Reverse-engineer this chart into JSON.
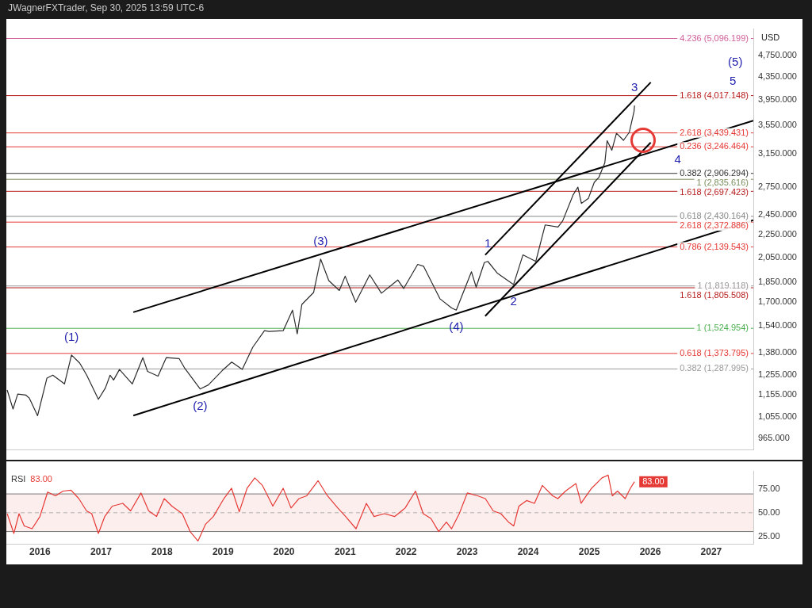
{
  "chart_data": [
    {
      "type": "line",
      "title": "JWagnerFXTrader, Sep 30, 2025 13:59 UTC-6",
      "ylabel": "USD",
      "log": true,
      "grid": false,
      "legend": false,
      "marker": "none",
      "tick_labels": "y",
      "xlim": [
        "2015-06-14",
        "2027-09-10"
      ],
      "ylim": [
        920,
        5300
      ],
      "yticks": [
        {
          "value": 965,
          "label": "965.000"
        },
        {
          "value": 1055,
          "label": "1,055.000"
        },
        {
          "value": 1155,
          "label": "1,155.000"
        },
        {
          "value": 1255,
          "label": "1,255.000"
        },
        {
          "value": 1380,
          "label": "1,380.000"
        },
        {
          "value": 1540,
          "label": "1,540.000"
        },
        {
          "value": 1700,
          "label": "1,700.000"
        },
        {
          "value": 1850,
          "label": "1,850.000"
        },
        {
          "value": 2050,
          "label": "2,050.000"
        },
        {
          "value": 2250,
          "label": "2,250.000"
        },
        {
          "value": 2450,
          "label": "2,450.000"
        },
        {
          "value": 2750,
          "label": "2,750.000"
        },
        {
          "value": 3150,
          "label": "3,150.000"
        },
        {
          "value": 3550,
          "label": "3,550.000"
        },
        {
          "value": 3950,
          "label": "3,950.000"
        },
        {
          "value": 4350,
          "label": "4,350.000"
        },
        {
          "value": 4750,
          "label": "4,750.000"
        }
      ],
      "series": [
        {
          "type": "line",
          "color": "#2b2b2b",
          "x": [
            "2015-06-19",
            "2015-07-24",
            "2015-08-21",
            "2015-10-09",
            "2015-10-30",
            "2015-12-18",
            "2016-02-12",
            "2016-03-18",
            "2016-05-27",
            "2016-07-08",
            "2016-08-26",
            "2016-10-07",
            "2016-12-16",
            "2017-01-27",
            "2017-02-24",
            "2017-03-17",
            "2017-04-21",
            "2017-07-07",
            "2017-09-08",
            "2017-10-06",
            "2017-12-08",
            "2018-01-26",
            "2018-04-13",
            "2018-05-18",
            "2018-08-17",
            "2018-10-05",
            "2018-12-28",
            "2019-02-22",
            "2019-04-26",
            "2019-06-28",
            "2019-09-06",
            "2019-10-04",
            "2019-12-27",
            "2020-02-21",
            "2020-03-20",
            "2020-04-17",
            "2020-06-26",
            "2020-08-07",
            "2020-09-25",
            "2020-11-27",
            "2021-01-01",
            "2021-03-05",
            "2021-05-28",
            "2021-08-06",
            "2021-11-12",
            "2021-12-17",
            "2022-03-11",
            "2022-04-15",
            "2022-07-22",
            "2022-09-30",
            "2022-10-28",
            "2023-01-27",
            "2023-02-24",
            "2023-04-14",
            "2023-05-05",
            "2023-06-30",
            "2023-10-06",
            "2023-12-01",
            "2024-02-16",
            "2024-04-12",
            "2024-06-28",
            "2024-07-26",
            "2024-09-27",
            "2024-10-25",
            "2024-11-15",
            "2024-12-27",
            "2025-01-31",
            "2025-02-28",
            "2025-04-04",
            "2025-04-18",
            "2025-05-16",
            "2025-06-13",
            "2025-07-25",
            "2025-08-29",
            "2025-09-26",
            "2025-09-29"
          ],
          "values": [
            1180,
            1090,
            1160,
            1155,
            1140,
            1060,
            1240,
            1255,
            1210,
            1365,
            1320,
            1255,
            1135,
            1190,
            1255,
            1230,
            1285,
            1210,
            1350,
            1275,
            1250,
            1350,
            1345,
            1290,
            1185,
            1205,
            1280,
            1325,
            1285,
            1410,
            1510,
            1505,
            1510,
            1645,
            1490,
            1685,
            1770,
            2035,
            1860,
            1785,
            1895,
            1700,
            1905,
            1765,
            1865,
            1800,
            1990,
            1975,
            1725,
            1660,
            1645,
            1930,
            1810,
            2005,
            2015,
            1920,
            1830,
            2070,
            2015,
            2345,
            2325,
            2385,
            2660,
            2745,
            2565,
            2620,
            2800,
            2860,
            3035,
            3330,
            3200,
            3435,
            3335,
            3450,
            3760,
            3855
          ]
        },
        {
          "type": "line",
          "color": "#000000",
          "x": [
            "2017-07-13",
            "2027-09-10"
          ],
          "values": [
            1631,
            3620
          ]
        },
        {
          "type": "line",
          "color": "#000000",
          "x": [
            "2017-07-13",
            "2027-09-10"
          ],
          "values": [
            1061,
            2392
          ]
        },
        {
          "type": "line",
          "color": "#000000",
          "x": [
            "2023-04-19",
            "2026-01-04"
          ],
          "values": [
            2070,
            4245
          ]
        },
        {
          "type": "line",
          "color": "#000000",
          "x": [
            "2023-04-19",
            "2026-01-04"
          ],
          "values": [
            1605,
            3305
          ]
        }
      ],
      "ref_lines": [
        {
          "axis": "y",
          "value": 5096.199,
          "label": "4.236 (5,096.199)",
          "color": "#d0609a"
        },
        {
          "axis": "y",
          "value": 4017.148,
          "label": "1.618 (4,017.148)",
          "color": "#b71c1c"
        },
        {
          "axis": "y",
          "value": 3439.431,
          "label": "2.618 (3,439.431)",
          "color": "#e53935"
        },
        {
          "axis": "y",
          "value": 3246.464,
          "label": "0.236 (3,246.464)",
          "color": "#e53935"
        },
        {
          "axis": "y",
          "value": 2906.294,
          "label": "0.382 (2,906.294)",
          "color": "#333333"
        },
        {
          "axis": "y",
          "value": 2835.616,
          "label": "1 (2,835.616)",
          "color": "#7a8f5e"
        },
        {
          "axis": "y",
          "value": 2697.423,
          "label": "1.618 (2,697.423)",
          "color": "#b71c1c"
        },
        {
          "axis": "y",
          "value": 2430.164,
          "label": "0.618 (2,430.164)",
          "color": "#888888"
        },
        {
          "axis": "y",
          "value": 2372.886,
          "label": "2.618 (2,372.886)",
          "color": "#e53935"
        },
        {
          "axis": "y",
          "value": 2139.543,
          "label": "0.786 (2,139.543)",
          "color": "#e53935"
        },
        {
          "axis": "y",
          "value": 1819.118,
          "label": "1 (1,819.118)",
          "color": "#999999"
        },
        {
          "axis": "y",
          "value": 1805.508,
          "label": "1.618 (1,805.508)",
          "color": "#b71c1c"
        },
        {
          "axis": "y",
          "value": 1524.954,
          "label": "1 (1,524.954)",
          "color": "#4caf50"
        },
        {
          "axis": "y",
          "value": 1373.795,
          "label": "0.618 (1,373.795)",
          "color": "#e53935"
        },
        {
          "axis": "y",
          "value": 1287.995,
          "label": "0.382 (1,287.995)",
          "color": "#999999"
        }
      ],
      "annotations": [
        {
          "text": "(1)",
          "x": "2016-07-08",
          "y": 1365
        },
        {
          "text": "(2)",
          "x": "2018-08-17",
          "y": 1185
        },
        {
          "text": "(3)",
          "x": "2020-08-07",
          "y": 2035
        },
        {
          "text": "(4)",
          "x": "2022-10-28",
          "y": 1645
        },
        {
          "text": "1",
          "x": "2023-05-05",
          "y": 2015
        },
        {
          "text": "2",
          "x": "2023-10-06",
          "y": 1830
        },
        {
          "text": "3",
          "x": "2025-09-29",
          "y": 3855
        },
        {
          "text": "4",
          "x": "2026-01-04",
          "y": 3305
        },
        {
          "text": "(5)",
          "x": "2027-05-25",
          "y": 5096.199
        },
        {
          "text": "5",
          "x": "2027-05-10",
          "y": 5096.199
        }
      ]
    },
    {
      "type": "line",
      "title": "RSI",
      "grid": false,
      "legend": false,
      "marker": "none",
      "xlim": [
        "2015-06-14",
        "2027-09-10"
      ],
      "ylim": [
        17,
        94
      ],
      "xticks": [
        {
          "value": "2016-01-01",
          "label": "2016"
        },
        {
          "value": "2017-01-01",
          "label": "2017"
        },
        {
          "value": "2018-01-01",
          "label": "2018"
        },
        {
          "value": "2019-01-01",
          "label": "2019"
        },
        {
          "value": "2020-01-01",
          "label": "2020"
        },
        {
          "value": "2021-01-01",
          "label": "2021"
        },
        {
          "value": "2022-01-01",
          "label": "2022"
        },
        {
          "value": "2023-01-01",
          "label": "2023"
        },
        {
          "value": "2024-01-01",
          "label": "2024"
        },
        {
          "value": "2025-01-01",
          "label": "2025"
        },
        {
          "value": "2026-01-01",
          "label": "2026"
        },
        {
          "value": "2027-01-01",
          "label": "2027"
        }
      ],
      "yticks": [
        {
          "value": 25,
          "label": "25.00"
        },
        {
          "value": 50,
          "label": "50.00"
        },
        {
          "value": 75,
          "label": "75.00"
        }
      ],
      "x": [
        "2015-06-19",
        "2015-07-29",
        "2015-08-29",
        "2015-09-29",
        "2015-11-15",
        "2016-01-01",
        "2016-02-16",
        "2016-04-03",
        "2016-05-19",
        "2016-07-05",
        "2016-08-21",
        "2016-10-06",
        "2016-11-06",
        "2016-12-16",
        "2017-01-23",
        "2017-03-09",
        "2017-05-11",
        "2017-06-27",
        "2017-08-28",
        "2017-10-13",
        "2017-11-29",
        "2018-01-14",
        "2018-03-01",
        "2018-05-02",
        "2018-06-18",
        "2018-08-04",
        "2018-09-19",
        "2018-11-04",
        "2019-01-06",
        "2019-02-21",
        "2019-04-08",
        "2019-05-25",
        "2019-07-10",
        "2019-08-25",
        "2019-10-26",
        "2019-12-27",
        "2020-02-12",
        "2020-03-30",
        "2020-05-16",
        "2020-07-23",
        "2020-09-17",
        "2020-11-18",
        "2021-01-04",
        "2021-03-07",
        "2021-05-08",
        "2021-06-23",
        "2021-08-24",
        "2021-10-25",
        "2021-12-26",
        "2022-02-26",
        "2022-04-13",
        "2022-05-29",
        "2022-07-15",
        "2022-08-30",
        "2022-09-30",
        "2022-11-15",
        "2023-01-02",
        "2023-03-05",
        "2023-04-20",
        "2023-06-06",
        "2023-07-22",
        "2023-09-06",
        "2023-10-07",
        "2023-11-07",
        "2023-12-23",
        "2024-02-08",
        "2024-03-26",
        "2024-05-27",
        "2024-06-27",
        "2024-08-12",
        "2024-10-13",
        "2024-11-13",
        "2025-01-15",
        "2025-03-18",
        "2025-04-24",
        "2025-05-19",
        "2025-06-19",
        "2025-08-04",
        "2025-09-04",
        "2025-09-29"
      ],
      "series": [
        {
          "color": "#e53935",
          "values": [
            49,
            28,
            49,
            36,
            33,
            46,
            72,
            68,
            73,
            74,
            65,
            52,
            49,
            28,
            46,
            57,
            60,
            52,
            71,
            52,
            46,
            65,
            57,
            49,
            30,
            20,
            38,
            46,
            65,
            76,
            51,
            76,
            87,
            79,
            57,
            76,
            55,
            65,
            68,
            84,
            68,
            55,
            46,
            33,
            60,
            46,
            49,
            46,
            55,
            73,
            49,
            44,
            30,
            40,
            33,
            49,
            71,
            68,
            65,
            52,
            49,
            40,
            36,
            57,
            63,
            60,
            79,
            68,
            65,
            73,
            81,
            60,
            76,
            87,
            90,
            68,
            73,
            65,
            76,
            83
          ]
        }
      ],
      "bands": [
        {
          "axis": "y",
          "from": 30,
          "to": 70,
          "color": "#fdeeee"
        }
      ],
      "ref_lines": [
        {
          "axis": "y",
          "value": 70,
          "color": "#787878"
        },
        {
          "axis": "y",
          "value": 30,
          "color": "#787878"
        },
        {
          "axis": "y",
          "value": 50,
          "color": "#b0b0b0",
          "line_style": "dashed"
        }
      ],
      "annotations": [
        "83.00",
        "83.00"
      ]
    }
  ]
}
